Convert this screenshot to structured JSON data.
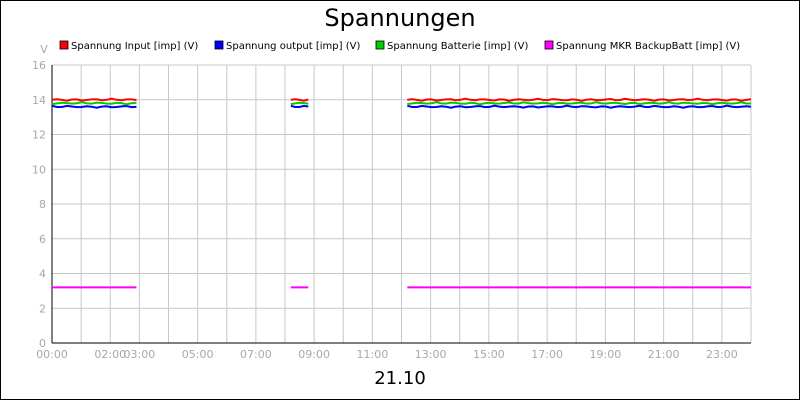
{
  "chart_data": {
    "type": "line",
    "title": "Spannungen",
    "xlabel": "21.10",
    "ylabel": "V",
    "ylim": [
      0,
      16
    ],
    "yticks": [
      "0",
      "2",
      "4",
      "6",
      "8",
      "10",
      "12",
      "14",
      "16"
    ],
    "xlim_hours": [
      0,
      24
    ],
    "xticks": [
      "00:00",
      "02:00",
      "03:00",
      "05:00",
      "07:00",
      "09:00",
      "11:00",
      "13:00",
      "15:00",
      "17:00",
      "19:00",
      "21:00",
      "23:00"
    ],
    "grid": true,
    "legend_position": "top",
    "segments_hours": [
      [
        0,
        2.9
      ],
      [
        8.2,
        8.8
      ],
      [
        12.2,
        24
      ]
    ],
    "series": [
      {
        "name": "Spannung Input [imp] (V)",
        "color": "#ff0000",
        "value": 14.0
      },
      {
        "name": "Spannung output [imp] (V)",
        "color": "#0000ff",
        "value": 13.6
      },
      {
        "name": "Spannung Batterie [imp] (V)",
        "color": "#00cc00",
        "value": 13.8
      },
      {
        "name": "Spannung MKR BackupBatt [imp] (V)",
        "color": "#ff00ff",
        "value": 3.2
      }
    ]
  }
}
